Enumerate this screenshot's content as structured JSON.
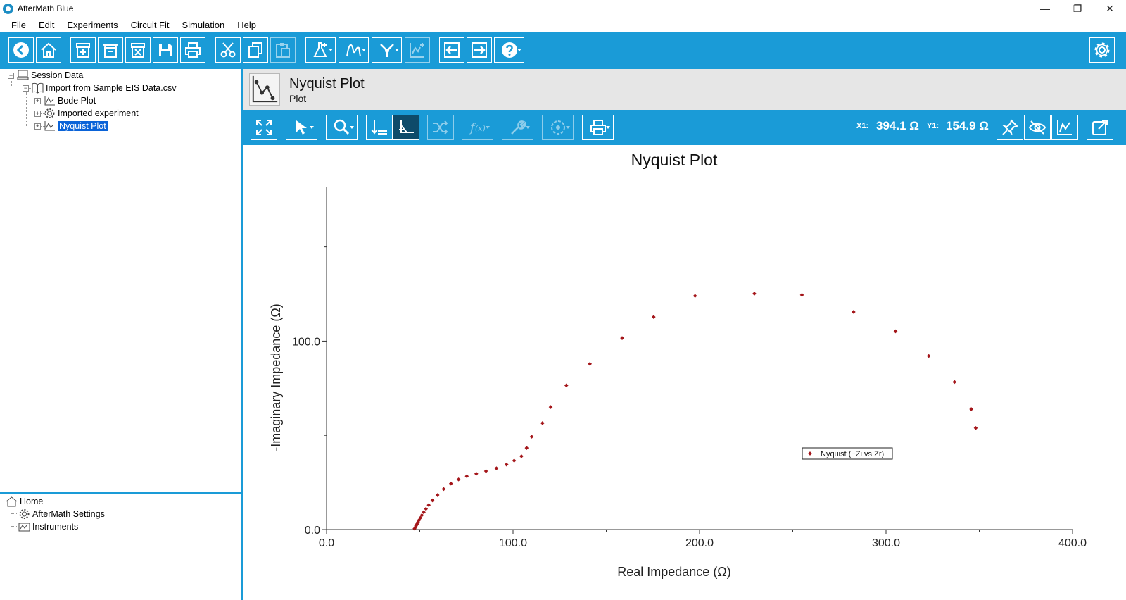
{
  "window": {
    "title": "AfterMath Blue",
    "controls": [
      "—",
      "❐",
      "✕"
    ]
  },
  "menu": [
    "File",
    "Edit",
    "Experiments",
    "Circuit Fit",
    "Simulation",
    "Help"
  ],
  "session_tree": {
    "root": "Session Data",
    "import": "Import from Sample EIS Data.csv",
    "children": [
      "Bode Plot",
      "Imported experiment",
      "Nyquist Plot"
    ],
    "selected": "Nyquist Plot"
  },
  "home_tree": {
    "root": "Home",
    "children": [
      "AfterMath Settings",
      "Instruments"
    ]
  },
  "plot_header": {
    "title": "Nyquist Plot",
    "subtitle": "Plot"
  },
  "cursor": {
    "x_label": "X1:",
    "x_value": "394.1 Ω",
    "y_label": "Y1:",
    "y_value": "154.9 Ω"
  },
  "colors": {
    "accent": "#1a9bd7",
    "marker": "#a4161a",
    "selection": "#0a63d8"
  },
  "chart_data": {
    "type": "scatter",
    "title": "Nyquist Plot",
    "xlabel": "Real Impedance (Ω)",
    "ylabel": "-Imaginary Impedance (Ω)",
    "xlim": [
      0,
      400
    ],
    "ylim": [
      0,
      182
    ],
    "x_ticks": [
      "0.0",
      "100.0",
      "200.0",
      "300.0",
      "400.0"
    ],
    "y_ticks": [
      "0.0",
      "100.0"
    ],
    "legend": "Nyquist (−Zi vs Zr)",
    "legend_position": "center-right",
    "series": [
      {
        "name": "Nyquist (−Zi vs Zr)",
        "points": [
          [
            47.2,
            0.5
          ],
          [
            47.6,
            1.2
          ],
          [
            48.0,
            2.0
          ],
          [
            48.5,
            2.9
          ],
          [
            49.0,
            3.9
          ],
          [
            49.6,
            5.0
          ],
          [
            50.3,
            6.2
          ],
          [
            51.1,
            7.6
          ],
          [
            52.1,
            9.2
          ],
          [
            53.3,
            11.0
          ],
          [
            54.8,
            13.0
          ],
          [
            56.8,
            15.5
          ],
          [
            59.5,
            18.3
          ],
          [
            62.8,
            21.5
          ],
          [
            66.7,
            24.4
          ],
          [
            70.8,
            26.6
          ],
          [
            75.2,
            28.3
          ],
          [
            80.3,
            29.6
          ],
          [
            85.5,
            31.0
          ],
          [
            91.1,
            32.5
          ],
          [
            96.5,
            34.5
          ],
          [
            100.6,
            36.6
          ],
          [
            104.5,
            38.9
          ],
          [
            107.3,
            43.3
          ],
          [
            110.0,
            49.3
          ],
          [
            115.8,
            56.5
          ],
          [
            120.2,
            65.0
          ],
          [
            128.6,
            76.5
          ],
          [
            141.2,
            87.9
          ],
          [
            158.5,
            101.6
          ],
          [
            175.4,
            112.8
          ],
          [
            197.6,
            124.0
          ],
          [
            229.4,
            125.2
          ],
          [
            254.9,
            124.5
          ],
          [
            282.6,
            115.5
          ],
          [
            305.1,
            105.2
          ],
          [
            322.9,
            92.1
          ],
          [
            336.7,
            78.3
          ],
          [
            345.7,
            63.9
          ],
          [
            348.1,
            53.9
          ]
        ]
      }
    ]
  }
}
